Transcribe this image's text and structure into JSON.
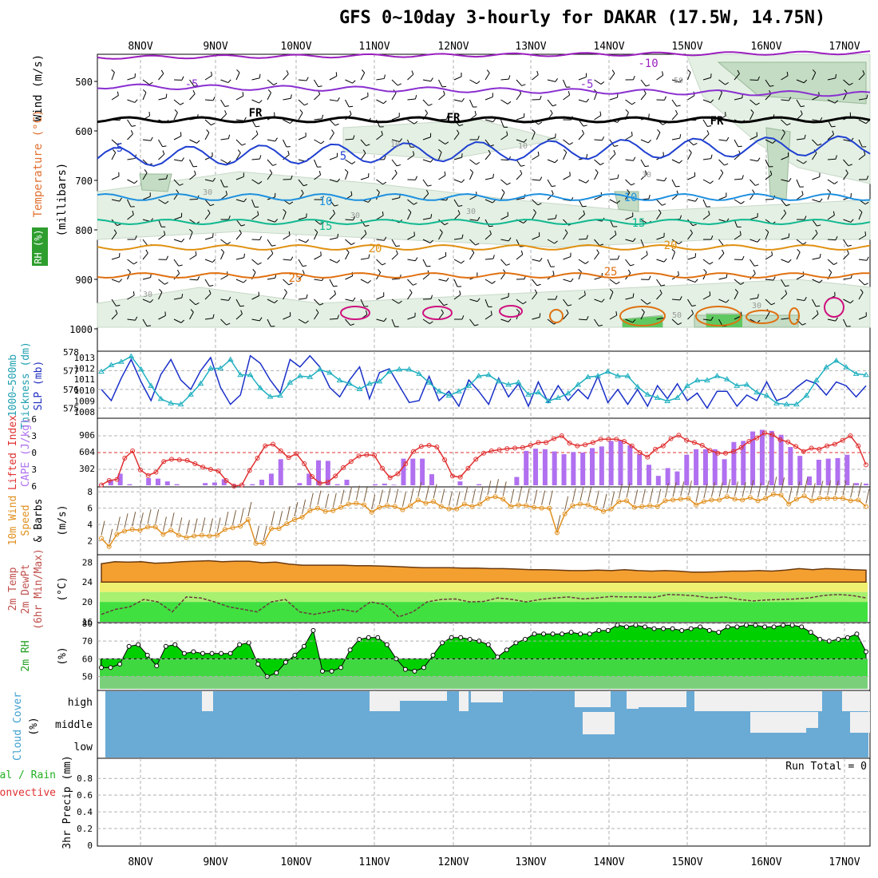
{
  "title": "GFS 0~10day 3-hourly for DAKAR (17.5W, 14.75N)",
  "colors": {
    "rh_fill": "#e3f0e3",
    "rh_mid": "#c3dcc3",
    "rh_dark": "#8cb08c",
    "t_m10": "#9b1fbf",
    "t_m5": "#8a2fd0",
    "t_fr": "#000000",
    "t_5": "#2040d0",
    "t_10": "#1e90e0",
    "t_15": "#10b890",
    "t_20": "#e09010",
    "t_25": "#e07010",
    "t_30": "#d01080",
    "thick": "#1a30c8",
    "slp": "#20b0c0",
    "li": "#e03030",
    "cape": "#b070f0",
    "wind10": "#e09020",
    "temp_fill": "#f4a030",
    "band_yellow": "#f0f070",
    "band_green": "#40e040",
    "rh2_fill": "#00d000",
    "cloud": "#6aabd6",
    "cloud_gap": "#f0f0f0",
    "grid": "#b0b0b0"
  },
  "time_axis": {
    "days": [
      "8NOV",
      "9NOV",
      "10NOV",
      "11NOV",
      "12NOV",
      "13NOV",
      "14NOV",
      "15NOV",
      "16NOV",
      "17NOV"
    ]
  },
  "panels": {
    "upper": {
      "ylabel_prefix": "Wind",
      "ylabel_units": "(m/s)",
      "ylabel_temp": "Temperature",
      "ylabel_temp_units": "(°C)",
      "ylabel_rh": "RH (%)",
      "ylabel_mb": "(millibars)",
      "yticks": [
        "500",
        "600",
        "700",
        "800",
        "900",
        "1000"
      ],
      "contour_labels": [
        "-10",
        "-5",
        "-5",
        "FR",
        "FR",
        "FR",
        "5",
        "5",
        "10",
        "10",
        "15",
        "15",
        "20",
        "20",
        "25",
        "25",
        "10",
        "10",
        "30",
        "30",
        "30",
        "30",
        "50",
        "30",
        "50",
        "30"
      ]
    },
    "thickness": {
      "ylabel1": "1000~500mb",
      "ylabel2": "Thickness (dm)",
      "ylabel3": "SLP (mb)",
      "left_ticks": [
        "578",
        "577",
        "576",
        "575"
      ],
      "right_ticks": [
        "1013",
        "1012",
        "1011",
        "1010",
        "1009",
        "1008"
      ]
    },
    "cape": {
      "ylabel1": "Lifted Index",
      "ylabel2": "CAPE (J/kg)",
      "left_ticks": [
        "-6",
        "-3",
        "0",
        "3",
        "6"
      ],
      "right_ticks": [
        "906",
        "604",
        "302"
      ]
    },
    "wind10": {
      "ylabel1": "10m Wind",
      "ylabel2": "Speed",
      "ylabel3": "& Barbs",
      "ylabel_units": "(m/s)",
      "yticks": [
        "8",
        "6",
        "4",
        "2"
      ]
    },
    "temp2m": {
      "ylabel1": "2m Temp",
      "ylabel2": "2m DewPt",
      "ylabel3": "(6hr Min/Max)",
      "ylabel_units": "(°C)",
      "yticks": [
        "28",
        "24",
        "20",
        "16"
      ]
    },
    "rh2m": {
      "ylabel1": "2m RH",
      "ylabel_units": "(%)",
      "yticks": [
        "80",
        "70",
        "60",
        "50"
      ]
    },
    "cloud": {
      "ylabel1": "Cloud Cover",
      "ylabel_units": "(%)",
      "levels": [
        "high",
        "middle",
        "low"
      ]
    },
    "precip": {
      "ylabel1": "tal / Rain",
      "ylabel2": "Convective",
      "ylabel3": "3hr Precip (mm)",
      "yticks": [
        "0.8",
        "0.6",
        "0.4",
        "0.2",
        "0"
      ],
      "run_total": "Run Total = 0"
    }
  },
  "chart_data": [
    {
      "type": "line",
      "title": "1000~500mb Thickness (dm) / SLP (mb)",
      "series": [
        {
          "name": "1000~500mb Thickness (dm)",
          "values": [
            576.0,
            575.4,
            576.6,
            577.6,
            576.4,
            575.4,
            576.8,
            577.6,
            576.5,
            576.0,
            577.0,
            577.7,
            576.1,
            575.2,
            575.7,
            577.8,
            577.4,
            576.5,
            575.8,
            577.6,
            577.2,
            577.8,
            577.2,
            576.1,
            575.6,
            576.5,
            577.2,
            575.5,
            576.9,
            577.1,
            576.2,
            575.3,
            575.4,
            576.7,
            575.4,
            575.9,
            575.1,
            576.5,
            575.9,
            575.2,
            576.6,
            575.6,
            576.3,
            575.1,
            576.4,
            575.3,
            576.2,
            575.4,
            576.0,
            575.5,
            576.7,
            575.3,
            576.0,
            575.2,
            576.0,
            575.1,
            576.2,
            575.5,
            576.3,
            575.4,
            575.8,
            575.0,
            575.9,
            575.9,
            575.1,
            575.7,
            575.4,
            576.4,
            575.4,
            575.6,
            576.1,
            576.5,
            576.3,
            575.7,
            576.4,
            576.2,
            575.6,
            576.2
          ]
        },
        {
          "name": "SLP (mb)",
          "values": [
            1011.7,
            1012.3,
            1012.6,
            1013.1,
            1011.9,
            1010.4,
            1009.2,
            1008.8,
            1008.7,
            1009.6,
            1010.6,
            1012.0,
            1012.0,
            1012.8,
            1011.4,
            1011.4,
            1010.2,
            1009.4,
            1009.5,
            1010.7,
            1011.3,
            1011.2,
            1011.9,
            1011.6,
            1010.9,
            1010.6,
            1010.1,
            1010.6,
            1010.8,
            1011.7,
            1011.9,
            1011.9,
            1011.5,
            1010.7,
            1009.9,
            1009.5,
            1009.9,
            1010.4,
            1011.3,
            1011.4,
            1010.8,
            1010.5,
            1010.7,
            1009.6,
            1009.8,
            1009.0,
            1009.3,
            1009.7,
            1010.5,
            1011.2,
            1011.3,
            1011.7,
            1011.3,
            1011.3,
            1010.3,
            1009.6,
            1009.3,
            1009.0,
            1009.3,
            1010.4,
            1010.9,
            1010.9,
            1011.3,
            1011.0,
            1010.4,
            1010.5,
            1009.8,
            1009.5,
            1008.8,
            1008.7,
            1008.7,
            1009.5,
            1010.9,
            1012.1,
            1012.7,
            1012.1,
            1011.5,
            1011.4
          ]
        }
      ],
      "ylim_left": [
        574.5,
        578
      ],
      "ylim_right": [
        1007.5,
        1013.5
      ]
    },
    {
      "type": "bar",
      "title": "Lifted Index / CAPE (J/kg)",
      "series": [
        {
          "name": "CAPE (J/kg)",
          "values": [
            10,
            100,
            210,
            20,
            0,
            130,
            120,
            70,
            20,
            0,
            0,
            40,
            50,
            110,
            20,
            10,
            20,
            100,
            210,
            470,
            0,
            40,
            210,
            450,
            440,
            20,
            100,
            0,
            0,
            20,
            30,
            10,
            480,
            480,
            480,
            200,
            0,
            0,
            70,
            0,
            20,
            0,
            0,
            0,
            150,
            620,
            660,
            650,
            610,
            560,
            600,
            590,
            670,
            700,
            800,
            810,
            720,
            560,
            370,
            170,
            310,
            250,
            550,
            650,
            650,
            650,
            470,
            780,
            800,
            970,
            1000,
            980,
            910,
            690,
            530,
            160,
            460,
            480,
            490,
            550,
            40,
            30
          ],
          "x_index_note": null
        },
        {
          "name": "Lifted Index",
          "values": [
            5.8,
            5.0,
            4.8,
            1.0,
            -0.3,
            3.1,
            4.1,
            3.5,
            1.6,
            1.2,
            1.3,
            1.4,
            2.0,
            2.6,
            3.0,
            3.3,
            5.0,
            6.0,
            5.8,
            3.2,
            1.0,
            -1.2,
            -1.5,
            -0.3,
            0.9,
            0.2,
            2.0,
            4.3,
            5.5,
            5.3,
            4.2,
            2.7,
            1.6,
            0.6,
            0.4,
            0.5,
            2.8,
            4.5,
            3.8,
            2.0,
            -0.2,
            -1.1,
            -1.3,
            -1.0,
            1.3,
            4.2,
            4.4,
            2.8,
            1.2,
            0.1,
            -0.3,
            -0.5,
            -0.7,
            -0.8,
            -0.9,
            -1.3,
            -1.8,
            -1.8,
            -2.5,
            -3.0,
            -1.7,
            -1.2,
            -1.4,
            -1.8,
            -2.4,
            -2.4,
            -2.4,
            -2.0,
            -1.2,
            0.0,
            0.8,
            -0.6,
            -1.2,
            -2.5,
            -3.1,
            -2.2,
            -1.8,
            -1.3,
            -0.4,
            0.1,
            0.1,
            -0.2,
            -0.9,
            -2.0,
            -2.6,
            -3.5,
            -3.2,
            -2.3,
            -1.9,
            -1.1,
            -0.2,
            -0.8,
            -0.6,
            -1.2,
            -1.5,
            -2.2,
            -3.0,
            -1.2,
            2.2
          ]
        }
      ],
      "ylim_left": [
        6,
        -6
      ],
      "ylim_right": [
        0,
        1208
      ]
    },
    {
      "type": "line",
      "title": "10m Wind Speed (m/s)",
      "series": [
        {
          "name": "10m Wind Speed & Barbs (m/s)",
          "values": [
            2.3,
            1.3,
            2.8,
            3.2,
            3.4,
            3.3,
            3.7,
            3.7,
            2.8,
            3.3,
            2.7,
            2.4,
            2.6,
            2.7,
            2.6,
            2.7,
            3.4,
            3.6,
            3.8,
            4.6,
            1.7,
            1.7,
            3.5,
            3.5,
            4.1,
            4.6,
            4.9,
            5.7,
            6.0,
            5.6,
            5.7,
            6.1,
            6.5,
            6.6,
            6.4,
            5.5,
            6.1,
            6.3,
            6.2,
            5.8,
            6.3,
            7.0,
            6.6,
            6.8,
            6.2,
            5.9,
            5.9,
            6.5,
            6.2,
            6.5,
            7.2,
            7.4,
            7.1,
            6.2,
            6.4,
            6.3,
            6.1,
            6.0,
            6.0,
            3.0,
            5.3,
            6.3,
            6.5,
            6.4,
            6.0,
            5.6,
            5.9,
            6.8,
            6.9,
            6.1,
            6.2,
            6.3,
            6.2,
            6.9,
            7.0,
            7.1,
            7.2,
            6.4,
            6.8,
            7.0,
            7.0,
            7.4,
            7.1,
            7.0,
            7.3,
            6.9,
            7.2,
            7.7,
            7.6,
            6.5,
            7.1,
            7.5,
            6.9,
            7.2,
            7.2,
            7.2,
            7.2,
            6.9,
            7.0,
            6.2
          ]
        }
      ],
      "ylim": [
        0.5,
        8.5
      ]
    },
    {
      "type": "area",
      "title": "2m Temp / 2m DewPt (°C)",
      "series": [
        {
          "name": "2m Temp",
          "values": [
            27.7,
            28.1,
            28.0,
            28.1,
            27.8,
            27.9,
            28.1,
            28.2,
            28.3,
            28.1,
            28.2,
            28.2,
            27.9,
            28.0,
            27.6,
            27.4,
            27.4,
            27.4,
            27.4,
            27.3,
            27.3,
            27.2,
            27.1,
            27.0,
            26.9,
            26.9,
            26.9,
            26.8,
            26.8,
            26.7,
            26.7,
            26.6,
            26.5,
            26.5,
            26.4,
            26.3,
            26.3,
            26.4,
            26.3,
            26.5,
            26.3,
            26.2,
            26.3,
            26.2,
            26.0,
            26.0,
            26.1,
            26.2,
            26.2,
            26.3,
            26.2,
            26.4,
            26.7,
            26.5,
            26.7,
            26.6,
            26.5,
            26.4
          ]
        },
        {
          "name": "2m DewPt",
          "values": [
            17.5,
            18.5,
            19.0,
            20.5,
            20.0,
            18.0,
            21.0,
            20.8,
            20.0,
            19.0,
            18.5,
            18.0,
            20.0,
            20.5,
            18.0,
            17.5,
            18.0,
            18.5,
            18.0,
            20.0,
            19.5,
            17.0,
            18.0,
            20.0,
            20.5,
            20.6,
            20.0,
            20.1,
            20.8,
            20.5,
            20.0,
            20.5,
            20.8,
            21.0,
            20.6,
            20.8,
            21.1,
            21.0,
            21.0,
            20.9,
            21.5,
            21.4,
            21.2,
            20.8,
            21.0,
            20.5,
            20.2,
            20.4,
            20.5,
            20.6,
            20.8,
            21.3,
            21.5,
            21.3,
            20.8
          ]
        }
      ],
      "ylim": [
        16,
        29.5
      ]
    },
    {
      "type": "area",
      "title": "2m RH (%)",
      "series": [
        {
          "name": "2m RH",
          "values": [
            55,
            55,
            57,
            67,
            68,
            62,
            56,
            67,
            68,
            63,
            64,
            63,
            63,
            63,
            63,
            68,
            69,
            57,
            50,
            52,
            58,
            62,
            67,
            76,
            53,
            53,
            55,
            65,
            71,
            72,
            72,
            68,
            60,
            54,
            53,
            55,
            62,
            69,
            72,
            72,
            71,
            70,
            68,
            61,
            65,
            69,
            71,
            74,
            74,
            74,
            74,
            75,
            74,
            74,
            76,
            76,
            79,
            78,
            79,
            78,
            77,
            77,
            77,
            76,
            77,
            78,
            76,
            75,
            78,
            78,
            79,
            79,
            78,
            78,
            79,
            79,
            78,
            75,
            71,
            70,
            71,
            72,
            74,
            64
          ]
        }
      ],
      "ylim": [
        43,
        80
      ]
    },
    {
      "type": "heatmap",
      "title": "Cloud Cover (%)",
      "levels": [
        "high",
        "middle",
        "low"
      ]
    },
    {
      "type": "bar",
      "title": "3hr Precip (mm)",
      "series": [
        {
          "name": "3hr Precip",
          "values": []
        }
      ],
      "ylim": [
        0,
        1
      ]
    }
  ]
}
